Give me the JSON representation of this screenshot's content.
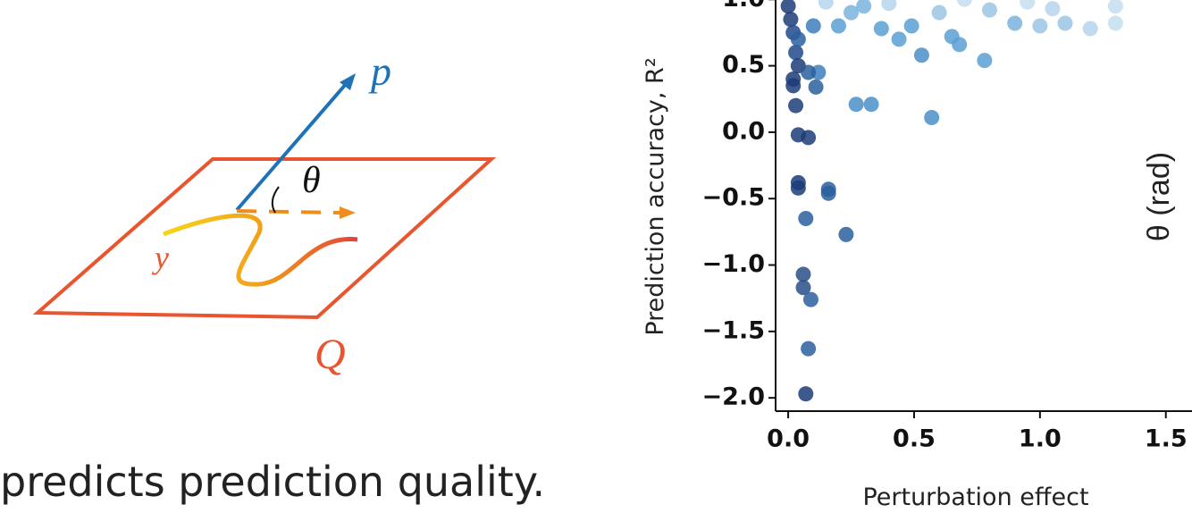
{
  "caption": "predicts prediction quality.",
  "diagram": {
    "p_label": "p",
    "theta_label": "θ",
    "y_label": "y",
    "q_label": "Q"
  },
  "chart_data": {
    "type": "scatter",
    "xlabel": "Perturbation effect",
    "ylabel": "Prediction accuracy, R²",
    "colorbar_label": "θ (rad)",
    "xlim": [
      -0.05,
      1.65
    ],
    "ylim": [
      -2.1,
      1.15
    ],
    "xticks": [
      {
        "value": 0,
        "label": "0.0"
      },
      0.5,
      {
        "value": 1,
        "label": "1.0"
      },
      1.5
    ],
    "yticks": [
      {
        "value": -2,
        "label": "−2.0"
      },
      {
        "value": -1.5,
        "label": "−1.5"
      },
      {
        "value": -1,
        "label": "−1.0"
      },
      {
        "value": -0.5,
        "label": "−0.5"
      },
      {
        "value": 0,
        "label": "0.0"
      },
      0.5,
      {
        "value": 1,
        "label": "1.0"
      }
    ],
    "x": [
      0.0,
      0.01,
      0.02,
      0.03,
      0.04,
      0.02,
      0.02,
      0.03,
      0.04,
      0.08,
      0.04,
      0.04,
      0.16,
      0.16,
      0.07,
      0.23,
      0.06,
      0.06,
      0.09,
      0.08,
      0.07,
      0.11,
      0.12,
      0.08,
      0.57,
      0.27,
      0.33,
      0.04,
      0.1,
      0.78,
      0.68,
      0.53,
      0.44,
      0.65,
      0.49,
      0.37,
      0.2,
      0.25,
      0.3,
      0.9,
      1.0,
      1.1,
      1.2,
      1.3,
      0.6,
      0.8,
      1.05,
      1.3,
      0.15,
      0.4,
      0.7,
      0.95
    ],
    "values": [
      0.95,
      0.85,
      0.75,
      0.6,
      0.5,
      0.4,
      0.35,
      0.2,
      -0.02,
      -0.04,
      -0.38,
      -0.42,
      -0.43,
      -0.46,
      -0.65,
      -0.77,
      -1.07,
      -1.17,
      -1.26,
      -1.63,
      -1.97,
      0.34,
      0.45,
      0.45,
      0.11,
      0.21,
      0.21,
      0.7,
      0.8,
      0.54,
      0.66,
      0.58,
      0.7,
      0.72,
      0.8,
      0.78,
      0.8,
      0.9,
      0.95,
      0.82,
      0.8,
      0.82,
      0.78,
      0.82,
      0.9,
      0.92,
      0.93,
      0.95,
      0.98,
      0.97,
      1.0,
      0.98
    ],
    "colors": [
      "#1c3c78",
      "#1c3c78",
      "#1f4a8c",
      "#1f4a8c",
      "#1c3c78",
      "#1c3c78",
      "#1c3c78",
      "#1c3c78",
      "#1c3c78",
      "#1c3c78",
      "#1c3c78",
      "#1c3c78",
      "#2a5f9e",
      "#2a5f9e",
      "#2a5f9e",
      "#2a5f9e",
      "#2a4f8a",
      "#2a4f8a",
      "#2a5f9e",
      "#2a5f9e",
      "#1c3c78",
      "#2a5f9e",
      "#3d7fbd",
      "#2a5f9e",
      "#4a8fc8",
      "#4a8fc8",
      "#4a8fc8",
      "#2a5f9e",
      "#3d7fbd",
      "#5a9fd2",
      "#5a9fd2",
      "#4a8fc8",
      "#5a9fd2",
      "#5a9fd2",
      "#5a9fd2",
      "#5a9fd2",
      "#5a9fd2",
      "#7ab3dd",
      "#7ab3dd",
      "#7ab3dd",
      "#9cc6e4",
      "#9cc6e4",
      "#b5d4ec",
      "#c6def0",
      "#9cc6e4",
      "#9cc6e4",
      "#b5d4ec",
      "#c6def0",
      "#b5d4ec",
      "#b5d4ec",
      "#c6def0",
      "#c6def0"
    ]
  }
}
